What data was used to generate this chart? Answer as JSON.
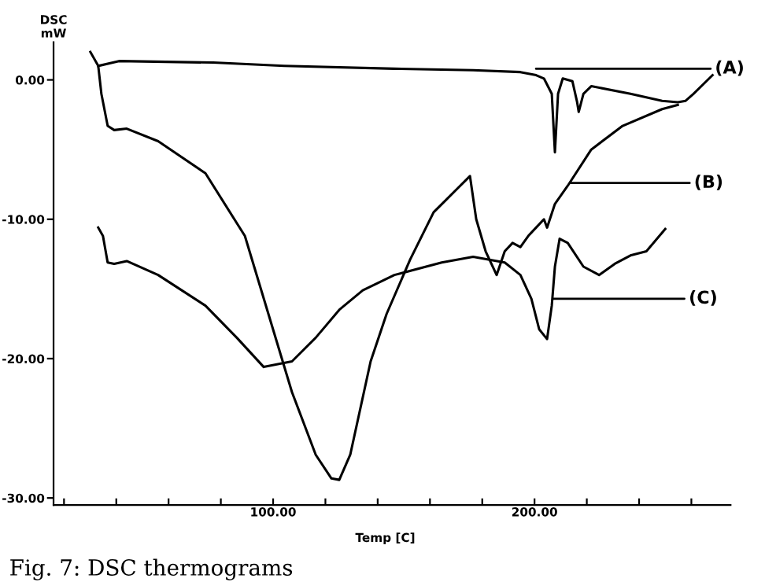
{
  "chart_data": {
    "type": "line",
    "xlabel": "Temp [C]",
    "ylabel": "DSC\nmW",
    "xlim": [
      16,
      275
    ],
    "ylim": [
      -30.5,
      2.7
    ],
    "xticks": [
      {
        "value": 20,
        "label": null
      },
      {
        "value": 40,
        "label": null
      },
      {
        "value": 60,
        "label": null
      },
      {
        "value": 80,
        "label": null
      },
      {
        "value": 100,
        "label": "100.00"
      },
      {
        "value": 120,
        "label": null
      },
      {
        "value": 140,
        "label": null
      },
      {
        "value": 160,
        "label": null
      },
      {
        "value": 180,
        "label": null
      },
      {
        "value": 200,
        "label": "200.00"
      },
      {
        "value": 220,
        "label": null
      },
      {
        "value": 240,
        "label": null
      },
      {
        "value": 260,
        "label": null
      }
    ],
    "yticks": [
      {
        "value": 0,
        "label": "0.00"
      },
      {
        "value": -10,
        "label": "-10.00"
      },
      {
        "value": -20,
        "label": "-20.00"
      },
      {
        "value": -30,
        "label": "-30.00"
      }
    ],
    "grid": false,
    "legend": false,
    "marker": "none",
    "line_style": "solid",
    "series": [
      {
        "color": "#000000",
        "x": [
          33.1,
          41,
          77.1,
          104.2,
          146.4,
          176.5,
          194.6,
          200.6,
          203.6,
          206.6,
          207.8,
          209,
          210.8,
          214.5,
          216.3,
          216.9,
          218.7,
          221.7,
          236.7,
          248.8,
          254.8,
          257.8,
          260.8,
          268.1
        ],
        "values": [
          1.0,
          1.35,
          1.24,
          1.0,
          0.8,
          0.7,
          0.56,
          0.34,
          0.1,
          -1.0,
          -5.2,
          -1.0,
          0.1,
          -0.1,
          -1.6,
          -2.3,
          -1.0,
          -0.45,
          -1.0,
          -1.5,
          -1.6,
          -1.5,
          -1.0,
          0.34
        ]
      },
      {
        "color": "#000000",
        "x": [
          30.1,
          33.1,
          34.3,
          36.7,
          39.2,
          44.0,
          56.0,
          74.1,
          89.2,
          98.2,
          107.2,
          116.3,
          122.3,
          125.3,
          129.5,
          137.3,
          143.4,
          152.4,
          161.4,
          170.5,
          175.3,
          177.7,
          181.3,
          185.5,
          188.6,
          191.6,
          194.6,
          197.6,
          200.6,
          203.6,
          204.8,
          207.8,
          212.7,
          221.7,
          233.7,
          248.8,
          254.8
        ],
        "values": [
          2.0,
          1.0,
          -1.0,
          -3.3,
          -3.6,
          -3.5,
          -4.4,
          -6.7,
          -11.2,
          -16.8,
          -22.4,
          -26.9,
          -28.6,
          -28.7,
          -26.9,
          -20.2,
          -16.8,
          -12.9,
          -9.5,
          -7.8,
          -6.9,
          -10.0,
          -12.3,
          -14.0,
          -12.3,
          -11.7,
          -12.0,
          -11.2,
          -10.6,
          -10.0,
          -10.6,
          -8.9,
          -7.6,
          -5.0,
          -3.3,
          -2.1,
          -1.8
        ]
      },
      {
        "color": "#000000",
        "x": [
          33.1,
          34.9,
          36.7,
          39.2,
          44.0,
          56.0,
          74.1,
          86.1,
          96.4,
          107.2,
          116.3,
          125.3,
          134.3,
          146.4,
          164.5,
          176.5,
          188.6,
          194.6,
          198.8,
          201.8,
          204.8,
          206.6,
          207.8,
          209.6,
          212.7,
          218.7,
          224.7,
          230.7,
          236.7,
          242.8,
          250.0
        ],
        "values": [
          -10.6,
          -11.2,
          -13.1,
          -13.2,
          -13.0,
          -14.0,
          -16.2,
          -18.5,
          -20.6,
          -20.2,
          -18.5,
          -16.5,
          -15.1,
          -14.0,
          -13.1,
          -12.7,
          -13.1,
          -14.0,
          -15.7,
          -17.9,
          -18.6,
          -16.2,
          -13.4,
          -11.4,
          -11.7,
          -13.4,
          -14.0,
          -13.2,
          -12.6,
          -12.3,
          -10.7
        ]
      }
    ],
    "annotations": [
      {
        "text": "(A)",
        "x": 200.6,
        "y": 0.8
      },
      {
        "text": "(B)",
        "x": 214,
        "y": -7.4
      },
      {
        "text": "(C)",
        "x": 207,
        "y": -15.7
      },
      "Fig. 7: DSC thermograms"
    ]
  }
}
